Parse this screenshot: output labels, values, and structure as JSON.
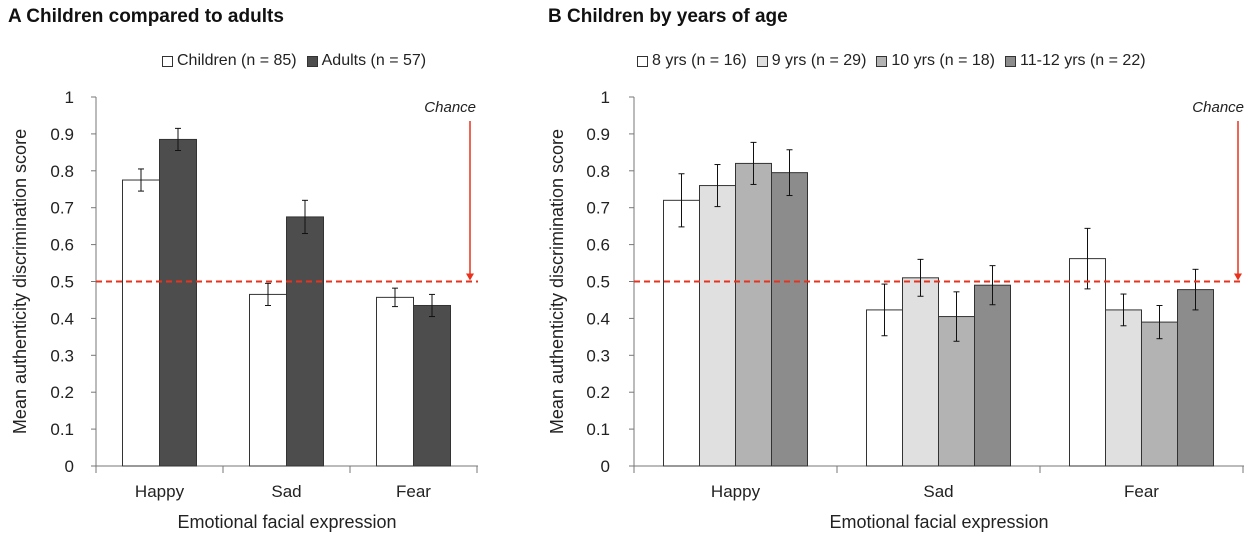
{
  "panels": {
    "a": {
      "title": "A  Children compared to adults"
    },
    "b": {
      "title": "B  Children by years of age"
    }
  },
  "chart_data": [
    {
      "type": "bar",
      "title": "A  Children compared to adults",
      "xlabel": "Emotional facial expression",
      "ylabel": "Mean authenticity discrimination score",
      "ylim": [
        0,
        1
      ],
      "yticks": [
        "0",
        "0.1",
        "0.2",
        "0.3",
        "0.4",
        "0.5",
        "0.6",
        "0.7",
        "0.8",
        "0.9",
        "1"
      ],
      "categories": [
        "Happy",
        "Sad",
        "Fear"
      ],
      "series": [
        {
          "name": "Children (n = 85)",
          "color": "#ffffff",
          "values": [
            0.775,
            0.465,
            0.457
          ],
          "errors": [
            0.03,
            0.03,
            0.025
          ]
        },
        {
          "name": "Adults (n = 57)",
          "color": "#4d4d4d",
          "values": [
            0.885,
            0.675,
            0.435
          ],
          "errors": [
            0.03,
            0.045,
            0.03
          ]
        }
      ],
      "reference_line": {
        "value": 0.5,
        "label": "Chance",
        "color": "#e8321e"
      }
    },
    {
      "type": "bar",
      "title": "B  Children by years of age",
      "xlabel": "Emotional facial expression",
      "ylabel": "Mean authenticity discrimination score",
      "ylim": [
        0,
        1
      ],
      "yticks": [
        "0",
        "0.1",
        "0.2",
        "0.3",
        "0.4",
        "0.5",
        "0.6",
        "0.7",
        "0.8",
        "0.9",
        "1"
      ],
      "categories": [
        "Happy",
        "Sad",
        "Fear"
      ],
      "series": [
        {
          "name": "8 yrs (n = 16)",
          "color": "#ffffff",
          "values": [
            0.72,
            0.423,
            0.562
          ],
          "errors": [
            0.072,
            0.07,
            0.082
          ]
        },
        {
          "name": "9 yrs (n = 29)",
          "color": "#e0e0e0",
          "values": [
            0.76,
            0.51,
            0.423
          ],
          "errors": [
            0.057,
            0.05,
            0.043
          ]
        },
        {
          "name": "10 yrs (n = 18)",
          "color": "#b3b3b3",
          "values": [
            0.82,
            0.405,
            0.39
          ],
          "errors": [
            0.057,
            0.067,
            0.045
          ]
        },
        {
          "name": "11-12 yrs (n = 22)",
          "color": "#8c8c8c",
          "values": [
            0.795,
            0.49,
            0.478
          ],
          "errors": [
            0.062,
            0.053,
            0.055
          ]
        }
      ],
      "reference_line": {
        "value": 0.5,
        "label": "Chance",
        "color": "#e8321e"
      }
    }
  ]
}
